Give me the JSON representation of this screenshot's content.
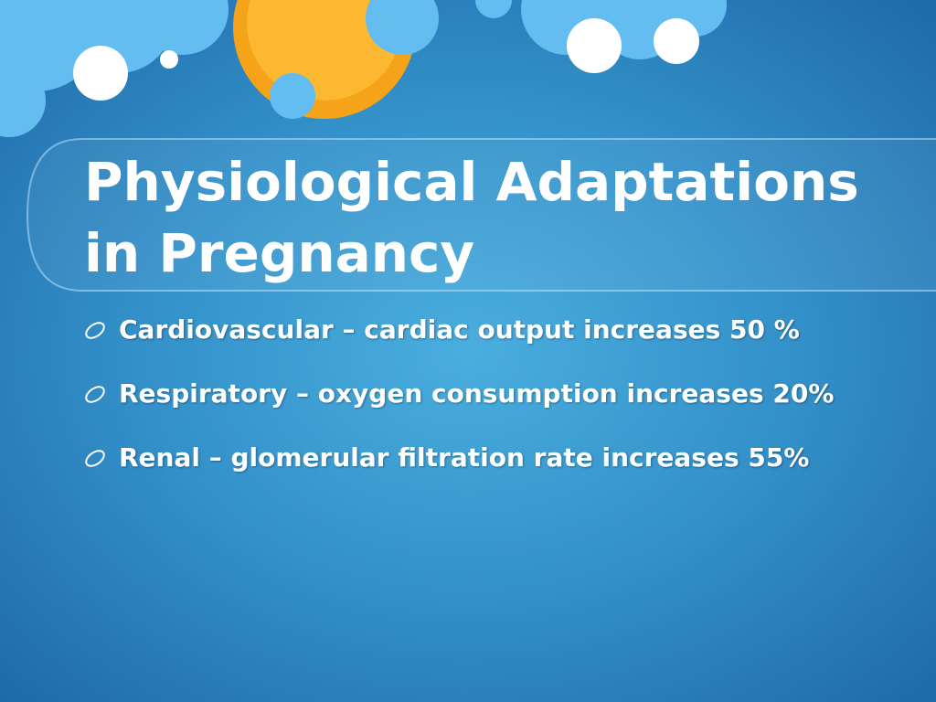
{
  "title": "Physiological Adaptations in Pregnancy",
  "bullets": [
    "Cardiovascular – cardiac output increases 50 %",
    "Respiratory – oxygen consumption increases 20%",
    "Renal – glomerular filtration rate increases 55%"
  ]
}
